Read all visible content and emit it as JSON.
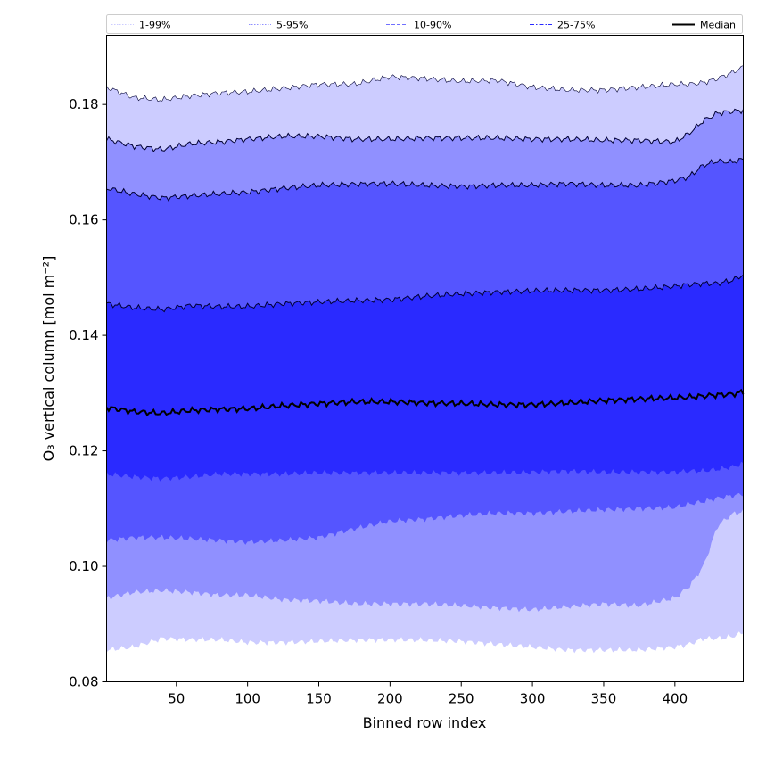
{
  "chart_data": {
    "type": "area",
    "title": "",
    "xlabel": "Binned row index",
    "ylabel": "O₃ vertical column [mol m⁻²]",
    "xlim": [
      1,
      448
    ],
    "ylim": [
      0.08,
      0.192
    ],
    "xticks": [
      50,
      100,
      150,
      200,
      250,
      300,
      350,
      400
    ],
    "yticks": [
      0.08,
      0.1,
      0.12,
      0.14,
      0.16,
      0.18
    ],
    "ytick_labels": [
      "0.08",
      "0.10",
      "0.12",
      "0.14",
      "0.16",
      "0.18"
    ],
    "x": [
      1,
      20,
      40,
      60,
      80,
      100,
      125,
      150,
      175,
      200,
      225,
      250,
      275,
      300,
      325,
      350,
      375,
      400,
      410,
      420,
      430,
      440,
      448
    ],
    "series": [
      {
        "name": "p1",
        "values": [
          0.0855,
          0.086,
          0.0875,
          0.0873,
          0.0873,
          0.0868,
          0.0868,
          0.087,
          0.0872,
          0.0873,
          0.0872,
          0.087,
          0.0865,
          0.086,
          0.0855,
          0.0855,
          0.0855,
          0.086,
          0.0865,
          0.0875,
          0.0875,
          0.0878,
          0.0885
        ]
      },
      {
        "name": "p5",
        "values": [
          0.0945,
          0.0955,
          0.0958,
          0.0955,
          0.095,
          0.095,
          0.0942,
          0.094,
          0.0935,
          0.0935,
          0.0935,
          0.0932,
          0.0928,
          0.0925,
          0.093,
          0.0935,
          0.0932,
          0.0945,
          0.0965,
          0.1,
          0.107,
          0.109,
          0.1095
        ]
      },
      {
        "name": "p10",
        "values": [
          0.1045,
          0.105,
          0.105,
          0.1048,
          0.1045,
          0.1042,
          0.1045,
          0.105,
          0.1065,
          0.1078,
          0.1082,
          0.1088,
          0.1092,
          0.1092,
          0.1095,
          0.1098,
          0.11,
          0.1102,
          0.1108,
          0.1112,
          0.1118,
          0.1122,
          0.1125
        ]
      },
      {
        "name": "p25",
        "values": [
          0.116,
          0.1155,
          0.1152,
          0.1155,
          0.116,
          0.116,
          0.116,
          0.1162,
          0.1162,
          0.1162,
          0.1162,
          0.1162,
          0.1162,
          0.1163,
          0.1165,
          0.1163,
          0.1163,
          0.1163,
          0.1165,
          0.1165,
          0.1168,
          0.1172,
          0.1178
        ]
      },
      {
        "name": "Median",
        "values": [
          0.1275,
          0.1268,
          0.1265,
          0.127,
          0.1272,
          0.1273,
          0.1278,
          0.1282,
          0.1285,
          0.1285,
          0.1283,
          0.1282,
          0.128,
          0.128,
          0.1283,
          0.1287,
          0.129,
          0.1292,
          0.1293,
          0.1295,
          0.1297,
          0.1298,
          0.1302
        ]
      },
      {
        "name": "p75",
        "values": [
          0.1455,
          0.1448,
          0.1445,
          0.1452,
          0.145,
          0.145,
          0.1455,
          0.1458,
          0.146,
          0.1462,
          0.1468,
          0.1472,
          0.1475,
          0.1477,
          0.1478,
          0.1478,
          0.148,
          0.1485,
          0.1488,
          0.149,
          0.149,
          0.1495,
          0.1505
        ]
      },
      {
        "name": "p90",
        "values": [
          0.1655,
          0.1645,
          0.1638,
          0.1642,
          0.1645,
          0.1648,
          0.1655,
          0.166,
          0.1662,
          0.1663,
          0.166,
          0.1658,
          0.166,
          0.166,
          0.1663,
          0.166,
          0.166,
          0.1668,
          0.1675,
          0.1695,
          0.1702,
          0.17,
          0.1705
        ]
      },
      {
        "name": "p95",
        "values": [
          0.174,
          0.1728,
          0.1722,
          0.1732,
          0.1735,
          0.174,
          0.1745,
          0.1745,
          0.174,
          0.174,
          0.1742,
          0.1742,
          0.1742,
          0.174,
          0.174,
          0.1738,
          0.1738,
          0.1735,
          0.175,
          0.1772,
          0.1785,
          0.1788,
          0.179
        ]
      },
      {
        "name": "p99",
        "values": [
          0.183,
          0.1812,
          0.1808,
          0.1815,
          0.182,
          0.1822,
          0.1828,
          0.1835,
          0.1835,
          0.1848,
          0.1845,
          0.184,
          0.1842,
          0.183,
          0.1825,
          0.1825,
          0.183,
          0.1835,
          0.1835,
          0.1838,
          0.1845,
          0.1855,
          0.1865
        ]
      }
    ],
    "bands": [
      {
        "label": "1-99%",
        "lower": "p1",
        "upper": "p99",
        "fill": "#ccccff",
        "line_style": "dotted",
        "line_color": "#ccccff"
      },
      {
        "label": "5-95%",
        "lower": "p5",
        "upper": "p95",
        "fill": "#9090ff",
        "line_style": "dotted",
        "line_color": "#9090ff"
      },
      {
        "label": "10-90%",
        "lower": "p10",
        "upper": "p90",
        "fill": "#5555ff",
        "line_style": "dashed",
        "line_color": "#7070ff"
      },
      {
        "label": "25-75%",
        "lower": "p25",
        "upper": "p75",
        "fill": "#2a2aff",
        "line_style": "dashdot",
        "line_color": "#2a2aff"
      }
    ],
    "median": {
      "label": "Median",
      "color": "#000000"
    },
    "legend": {
      "placement": "top",
      "entries": [
        "1-99%",
        "5-95%",
        "10-90%",
        "25-75%",
        "Median"
      ]
    }
  }
}
